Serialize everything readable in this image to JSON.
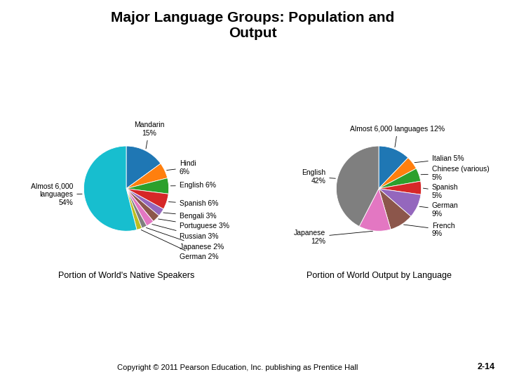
{
  "title": "Major Language Groups: Population and\nOutput",
  "annotations": [
    "Copyright © 2011 Pearson Education, Inc. publishing as Prentice Hall",
    "2-14"
  ],
  "chart_data": [
    {
      "type": "pie",
      "title": "Portion of World's Native Speakers",
      "categories": [
        "Mandarin\n15%",
        "Hindi\n6%",
        "English 6%",
        "Spanish 6%",
        "Bengali 3%",
        "Portuguese 3%",
        "Russian 3%",
        "Japanese 2%",
        "German 2%",
        "Almost 6,000\nlanguages\n54%"
      ],
      "values": [
        15,
        6,
        6,
        6,
        3,
        3,
        3,
        2,
        2,
        54
      ]
    },
    {
      "type": "pie",
      "title": "Portion of World Output by Language",
      "categories": [
        "Almost 6,000 languages 12%",
        "Italian 5%",
        "Chinese (various)\n5%",
        "Spanish\n5%",
        "German\n9%",
        "French\n9%",
        "Japanese\n12%",
        "English\n42%"
      ],
      "values": [
        12,
        5,
        5,
        5,
        9,
        9,
        12,
        42
      ]
    }
  ]
}
